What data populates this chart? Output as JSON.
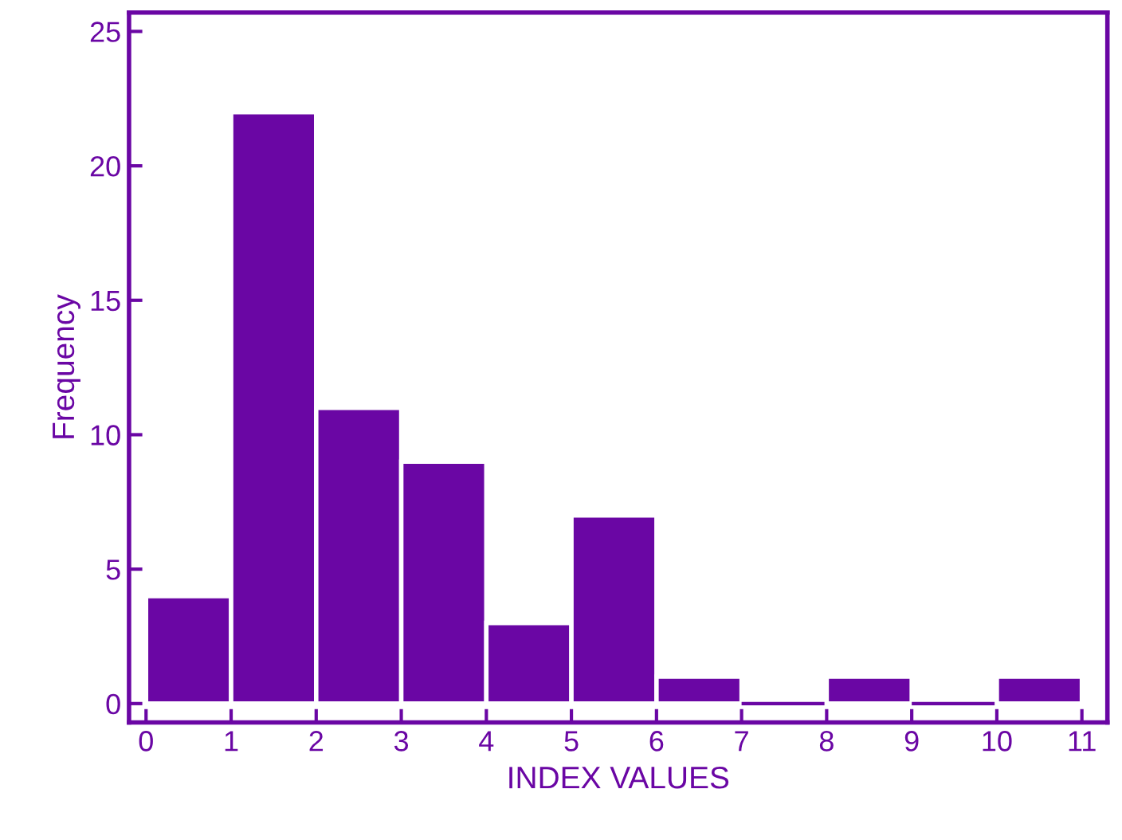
{
  "chart_data": {
    "type": "histogram",
    "xlabel": "INDEX VALUES",
    "ylabel": "Frequency",
    "bins": [
      0,
      1,
      2,
      3,
      4,
      5,
      6,
      7,
      8,
      9,
      10,
      11
    ],
    "values": [
      4,
      22,
      11,
      9,
      3,
      7,
      1,
      0,
      1,
      0,
      1
    ],
    "color": "#6a06a4",
    "xlim": [
      -0.2,
      11.3
    ],
    "ylim": [
      -0.7,
      25.7
    ],
    "xticks": [
      0,
      1,
      2,
      3,
      4,
      5,
      6,
      7,
      8,
      9,
      10,
      11
    ],
    "yticks": [
      0,
      5,
      10,
      15,
      20,
      25
    ],
    "grid": false
  }
}
